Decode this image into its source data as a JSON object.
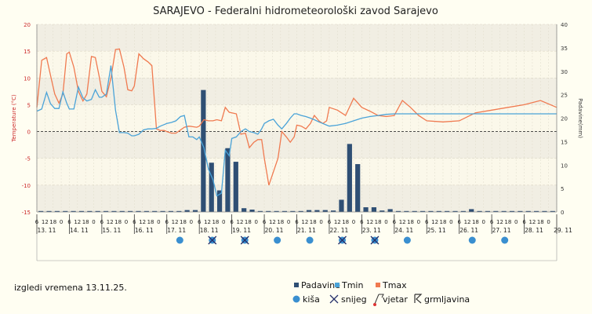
{
  "title": "SARAJEVO - Federalni hidrometeorološki zavod Sarajevo",
  "footer_note": "izgledi vremena 13.11.25.",
  "chart_data": {
    "type": "line",
    "y_left": {
      "label": "Temperature (°C)",
      "min": -15,
      "max": 20,
      "ticks": [
        -15,
        -10,
        -5,
        0,
        5,
        10,
        15,
        20
      ]
    },
    "y_right": {
      "label": "Padavine(mm)",
      "min": 0,
      "max": 40,
      "ticks": [
        0,
        5,
        10,
        15,
        20,
        25,
        30,
        35,
        40
      ]
    },
    "days": [
      "13. 11",
      "14. 11",
      "15. 11",
      "16. 11",
      "17. 11",
      "18. 11",
      "19. 11",
      "20. 11",
      "21. 11",
      "22. 11",
      "23. 11",
      "24. 11",
      "25. 11",
      "26. 11",
      "27. 11",
      "28. 11",
      "29. 11"
    ],
    "hour_labels": [
      "6",
      "12",
      "18",
      "0"
    ],
    "series": [
      {
        "name": "Tmax",
        "color": "#f07a50",
        "x": [
          0,
          0.15,
          0.3,
          0.42,
          0.55,
          0.68,
          0.8,
          0.92,
          1,
          1.14,
          1.28,
          1.42,
          1.54,
          1.68,
          1.8,
          1.92,
          2,
          2.14,
          2.28,
          2.42,
          2.54,
          2.68,
          2.8,
          2.92,
          3,
          3.14,
          3.28,
          3.42,
          3.54,
          3.68,
          3.8,
          3.92,
          4,
          4.14,
          4.28,
          4.42,
          4.54,
          4.68,
          4.8,
          4.92,
          5,
          5.14,
          5.28,
          5.42,
          5.54,
          5.68,
          5.8,
          5.92,
          6,
          6.14,
          6.28,
          6.42,
          6.54,
          6.68,
          6.8,
          6.92,
          7,
          7.14,
          7.28,
          7.42,
          7.54,
          7.68,
          7.8,
          7.92,
          8,
          8.14,
          8.28,
          8.42,
          8.54,
          8.68,
          8.8,
          8.92,
          9,
          9.25,
          9.5,
          9.75,
          10,
          10.25,
          10.5,
          10.75,
          11,
          11.25,
          11.5,
          11.75,
          12,
          12.5,
          13,
          13.5,
          14,
          14.5,
          15,
          15.5,
          16
        ],
        "y": [
          4.5,
          13.3,
          13.8,
          10.5,
          7,
          5.3,
          7,
          14.5,
          14.8,
          12,
          7.5,
          5.7,
          7,
          14,
          13.8,
          10.2,
          7.5,
          6.5,
          10,
          15.3,
          15.4,
          12,
          7.8,
          7.6,
          8.5,
          14.5,
          13.6,
          13,
          12.3,
          0.5,
          0.2,
          0.2,
          0,
          -0.3,
          -0.3,
          0.3,
          0.8,
          1,
          0.9,
          0.8,
          1,
          2.2,
          2,
          2,
          2.2,
          2,
          4.5,
          3.6,
          3.5,
          3.3,
          -0.5,
          -0.3,
          -3,
          -2,
          -1.5,
          -1.5,
          -5,
          -10,
          -7.5,
          -5,
          0,
          -1,
          -2,
          -1,
          1.2,
          1,
          0.5,
          1.5,
          3,
          2,
          1.5,
          2,
          4.5,
          4,
          3,
          6.2,
          4.5,
          3.8,
          3,
          2.8,
          3,
          5.8,
          4.5,
          3,
          2,
          1.8,
          2,
          3.5,
          4,
          4.5,
          5,
          5.8,
          4.5
        ],
        "note": "values in °C; x in day units from 13.11 06h"
      },
      {
        "name": "Tmin",
        "color": "#4aa3d8",
        "x": [
          0,
          0.15,
          0.3,
          0.42,
          0.55,
          0.68,
          0.8,
          0.92,
          1,
          1.14,
          1.28,
          1.42,
          1.54,
          1.68,
          1.8,
          1.92,
          2,
          2.14,
          2.28,
          2.42,
          2.54,
          2.68,
          2.8,
          2.92,
          3,
          3.14,
          3.28,
          3.42,
          3.54,
          3.68,
          3.8,
          3.92,
          4,
          4.14,
          4.28,
          4.42,
          4.54,
          4.68,
          4.8,
          4.92,
          5,
          5.14,
          5.28,
          5.42,
          5.54,
          5.68,
          5.8,
          5.92,
          6,
          6.14,
          6.28,
          6.42,
          6.54,
          6.68,
          6.8,
          6.92,
          7,
          7.14,
          7.28,
          7.42,
          7.54,
          7.68,
          7.8,
          7.92,
          8,
          8.14,
          8.28,
          8.42,
          8.54,
          8.68,
          8.8,
          8.92,
          9,
          9.25,
          9.5,
          9.75,
          10,
          10.25,
          10.5,
          10.75,
          11,
          11.25,
          11.5,
          11.75,
          12,
          12.5,
          13,
          13.5,
          14,
          14.5,
          15,
          15.5,
          16
        ],
        "y": [
          3.8,
          4.2,
          7.3,
          5.2,
          4.3,
          4.3,
          7.4,
          5.3,
          4.2,
          4.2,
          8.3,
          6.3,
          5.7,
          6,
          7.8,
          6.4,
          6.4,
          7,
          12.3,
          4,
          -0.2,
          -0.2,
          -0.3,
          -0.8,
          -0.8,
          -0.5,
          0.3,
          0.5,
          0.5,
          0.6,
          1,
          1.3,
          1.5,
          1.7,
          2,
          2.8,
          3,
          -1,
          -1,
          -1.5,
          -1,
          -3,
          -7,
          -9,
          -12,
          -11.5,
          -3.5,
          -4.5,
          -1.3,
          -1,
          0,
          0.5,
          0,
          -0.2,
          -0.5,
          0.5,
          1.5,
          2,
          2.3,
          1.2,
          0.5,
          1.5,
          2.5,
          3.3,
          3.3,
          3,
          2.8,
          2.5,
          2.2,
          1.8,
          1.5,
          1.2,
          1,
          1.2,
          1.5,
          2,
          2.5,
          2.8,
          3,
          3.2,
          3.3,
          3.3,
          3.3,
          3.3,
          3.3,
          3.3,
          3.3,
          3.3,
          3.3,
          3.3,
          3.3,
          3.3,
          3.3
        ]
      },
      {
        "name": "Padavine",
        "color": "#2f4f74",
        "type": "bar",
        "x": [
          0,
          0.25,
          0.5,
          0.75,
          1,
          1.25,
          1.5,
          1.75,
          2,
          2.25,
          2.5,
          2.75,
          3,
          3.25,
          3.5,
          3.75,
          4,
          4.25,
          4.5,
          4.75,
          5,
          5.25,
          5.5,
          5.75,
          6,
          6.25,
          6.5,
          6.75,
          7,
          7.25,
          7.5,
          7.75,
          8,
          8.25,
          8.5,
          8.75,
          9,
          9.25,
          9.5,
          9.75,
          10,
          10.25,
          10.5,
          10.75,
          11,
          11.25,
          11.5,
          11.75,
          12,
          12.25,
          12.5,
          12.75,
          13,
          13.25,
          13.5,
          13.75,
          14,
          14.25,
          14.5,
          14.75,
          15,
          15.25,
          15.5,
          15.75
        ],
        "y": [
          0.2,
          0.2,
          0.2,
          0.2,
          0.2,
          0.2,
          0.2,
          0.2,
          0.2,
          0.2,
          0.2,
          0.2,
          0.2,
          0.2,
          0.2,
          0.2,
          0.2,
          0.2,
          0.4,
          0.4,
          26,
          10.5,
          4.6,
          13.6,
          10.7,
          0.8,
          0.5,
          0.2,
          0.2,
          0.2,
          0.2,
          0.2,
          0.2,
          0.4,
          0.4,
          0.4,
          0.3,
          2.6,
          14.5,
          10.2,
          1,
          1,
          0.3,
          0.6,
          0.2,
          0.2,
          0.2,
          0.2,
          0.2,
          0.2,
          0.2,
          0.2,
          0.2,
          0.6,
          0.2,
          0.2,
          0.2,
          0.2,
          0.2,
          0.2,
          0.2,
          0.2,
          0.2,
          0.2
        ]
      }
    ],
    "legend": [
      {
        "name": "Padavine",
        "color": "#2f4f74"
      },
      {
        "name": "Tmin",
        "color": "#4aa3d8"
      },
      {
        "name": "Tmax",
        "color": "#f07a50"
      }
    ],
    "weather_legend": [
      {
        "name": "kiša",
        "icon": "rain-dot-icon"
      },
      {
        "name": "snijeg",
        "icon": "snowflake-icon"
      },
      {
        "name": "vjetar",
        "icon": "wind-flag-icon"
      },
      {
        "name": "grmljavina",
        "icon": "thunder-icon"
      }
    ],
    "weather_markers": [
      {
        "day": "17. 11",
        "icon": "rain-dot-icon"
      },
      {
        "day": "18. 11",
        "icon": "rain-snow-icon"
      },
      {
        "day": "19. 11",
        "icon": "rain-snow-icon"
      },
      {
        "day": "20. 11",
        "icon": "rain-dot-icon"
      },
      {
        "day": "21. 11",
        "icon": "rain-dot-icon"
      },
      {
        "day": "22. 11",
        "icon": "rain-snow-icon"
      },
      {
        "day": "23. 11",
        "icon": "rain-snow-icon"
      },
      {
        "day": "24. 11",
        "icon": "rain-dot-icon"
      },
      {
        "day": "26. 11",
        "icon": "rain-dot-icon"
      },
      {
        "day": "27. 11",
        "icon": "rain-dot-icon"
      }
    ],
    "grid": true,
    "legend_position": "bottom"
  }
}
